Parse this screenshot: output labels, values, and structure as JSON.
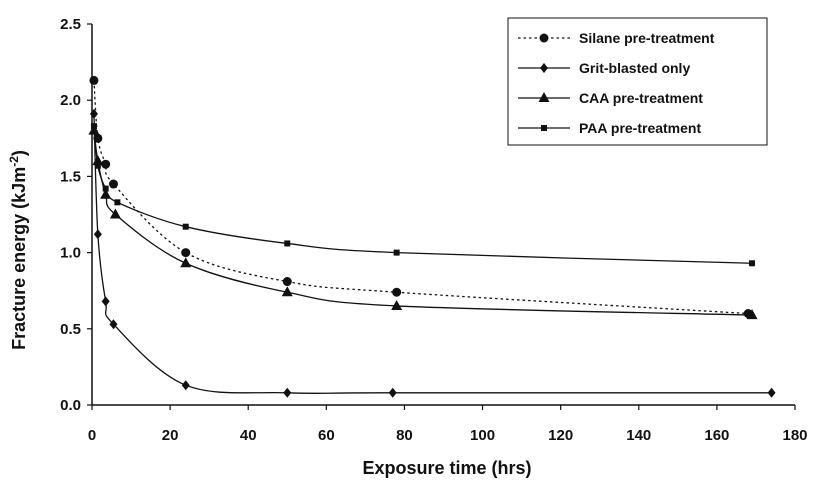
{
  "chart_data": {
    "type": "line",
    "title": "",
    "xlabel": "Exposure time (hrs)",
    "ylabel_main": "Fracture energy (kJm",
    "ylabel_sup": "-2",
    "ylabel_close": ")",
    "xlim": [
      0,
      180
    ],
    "ylim": [
      0,
      2.5
    ],
    "x_ticks": [
      0,
      20,
      40,
      60,
      80,
      100,
      120,
      140,
      160,
      180
    ],
    "y_ticks": [
      "0.0",
      "0.5",
      "1.0",
      "1.5",
      "2.0",
      "2.5"
    ],
    "grid": false,
    "legend_position": "top-right",
    "series": [
      {
        "name": "Silane pre-treatment",
        "marker": "circle",
        "line": "dotted",
        "x": [
          0.5,
          1.5,
          3.5,
          5.5,
          24,
          50,
          78,
          168
        ],
        "y": [
          2.13,
          1.75,
          1.58,
          1.45,
          1.0,
          0.81,
          0.74,
          0.6
        ]
      },
      {
        "name": "Grit-blasted only",
        "marker": "diamond",
        "line": "solid",
        "x": [
          0.5,
          1.5,
          3.5,
          5.5,
          24,
          50,
          77,
          174
        ],
        "y": [
          1.91,
          1.12,
          0.68,
          0.53,
          0.13,
          0.08,
          0.08,
          0.08
        ]
      },
      {
        "name": "CAA pre-treatment",
        "marker": "triangle",
        "line": "solid",
        "x": [
          0.5,
          1.5,
          3.5,
          6.0,
          24,
          50,
          78,
          169
        ],
        "y": [
          1.8,
          1.6,
          1.38,
          1.25,
          0.93,
          0.74,
          0.65,
          0.59
        ]
      },
      {
        "name": "PAA pre-treatment",
        "marker": "square",
        "line": "solid",
        "x": [
          0.5,
          1.5,
          3.5,
          6.5,
          24,
          50,
          78,
          169
        ],
        "y": [
          1.83,
          1.57,
          1.42,
          1.33,
          1.17,
          1.06,
          1.0,
          0.93
        ]
      }
    ]
  }
}
